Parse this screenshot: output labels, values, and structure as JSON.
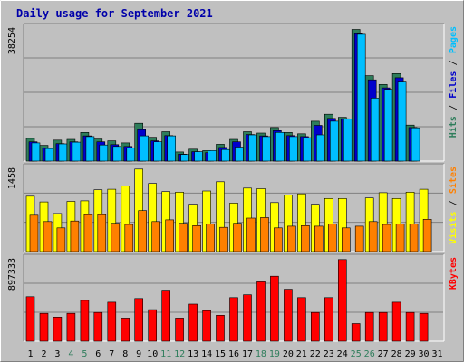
{
  "chart_data": [
    {
      "type": "bar",
      "title": "Daily usage for September 2021",
      "categories": [
        "1",
        "2",
        "3",
        "4",
        "5",
        "6",
        "7",
        "8",
        "9",
        "10",
        "11",
        "12",
        "13",
        "14",
        "15",
        "16",
        "17",
        "18",
        "19",
        "20",
        "21",
        "22",
        "23",
        "24",
        "25",
        "26",
        "27",
        "28",
        "29",
        "30",
        "31"
      ],
      "weekend_categories": [
        "4",
        "5",
        "11",
        "12",
        "18",
        "19",
        "25",
        "26"
      ],
      "ylim": [
        0,
        38254
      ],
      "max_label": "38254",
      "side_labels": [
        "Pages",
        "Files",
        "Hits"
      ],
      "series": [
        {
          "name": "Hits",
          "color": "#2e7d5b",
          "values": [
            6500,
            4500,
            6000,
            6200,
            8200,
            6300,
            5800,
            5200,
            10800,
            6800,
            8400,
            2600,
            3400,
            3000,
            4800,
            6200,
            8400,
            8000,
            9600,
            8200,
            7800,
            11400,
            13400,
            12500,
            37600,
            24400,
            21900,
            25000,
            10300,
            0,
            0
          ]
        },
        {
          "name": "Files",
          "color": "#0000cc",
          "values": [
            5500,
            3700,
            5000,
            5500,
            7200,
            5500,
            4700,
            4200,
            9000,
            5800,
            7300,
            2000,
            2700,
            2400,
            3900,
            5500,
            7600,
            7200,
            8700,
            7300,
            7000,
            10200,
            12200,
            12100,
            36400,
            23200,
            20900,
            23800,
            9600,
            0,
            0
          ]
        },
        {
          "name": "Pages",
          "color": "#00bfff",
          "values": [
            5200,
            3600,
            4900,
            5400,
            7000,
            4600,
            4200,
            3800,
            7200,
            5500,
            7200,
            1900,
            2700,
            3000,
            3300,
            4000,
            7500,
            7000,
            8200,
            7000,
            6700,
            7500,
            11400,
            12000,
            36200,
            18000,
            20500,
            22600,
            9500,
            0,
            0
          ]
        }
      ]
    },
    {
      "type": "bar",
      "ylim": [
        0,
        1458
      ],
      "max_label": "1458",
      "side_labels": [
        "Sites",
        "Visits"
      ],
      "series": [
        {
          "name": "Visits",
          "color": "#ffff00",
          "values": [
            960,
            860,
            660,
            870,
            880,
            1070,
            1080,
            1140,
            1430,
            1180,
            1040,
            1030,
            820,
            1050,
            1210,
            840,
            1100,
            1090,
            850,
            980,
            1000,
            820,
            920,
            920,
            0,
            930,
            1020,
            920,
            1030,
            1080,
            0
          ]
        },
        {
          "name": "Sites",
          "color": "#ff8000",
          "values": [
            630,
            520,
            410,
            530,
            640,
            640,
            490,
            470,
            710,
            520,
            550,
            490,
            450,
            480,
            420,
            490,
            580,
            590,
            410,
            440,
            450,
            440,
            480,
            410,
            440,
            520,
            470,
            480,
            480,
            560,
            0
          ]
        }
      ]
    },
    {
      "type": "bar",
      "ylim": [
        0,
        897333
      ],
      "max_label": "897333",
      "side_labels": [
        "KBytes"
      ],
      "series": [
        {
          "name": "KBytes",
          "color": "#ff0000",
          "values": [
            480000,
            300000,
            260000,
            300000,
            440000,
            310000,
            420000,
            250000,
            460000,
            340000,
            550000,
            250000,
            400000,
            330000,
            280000,
            470000,
            500000,
            640000,
            700000,
            560000,
            470000,
            310000,
            470000,
            880000,
            190000,
            310000,
            310000,
            420000,
            310000,
            300000,
            0
          ]
        }
      ]
    }
  ]
}
